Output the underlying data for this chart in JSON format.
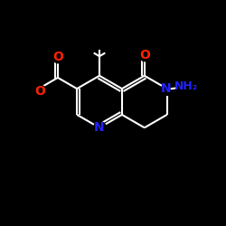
{
  "background_color": "#000000",
  "bond_color": "#ffffff",
  "atom_colors": {
    "O": "#ff2200",
    "N": "#2222ff",
    "C": "#ffffff"
  },
  "figsize": [
    2.5,
    2.5
  ],
  "dpi": 100,
  "bond_lw": 1.5,
  "font_size": 9
}
